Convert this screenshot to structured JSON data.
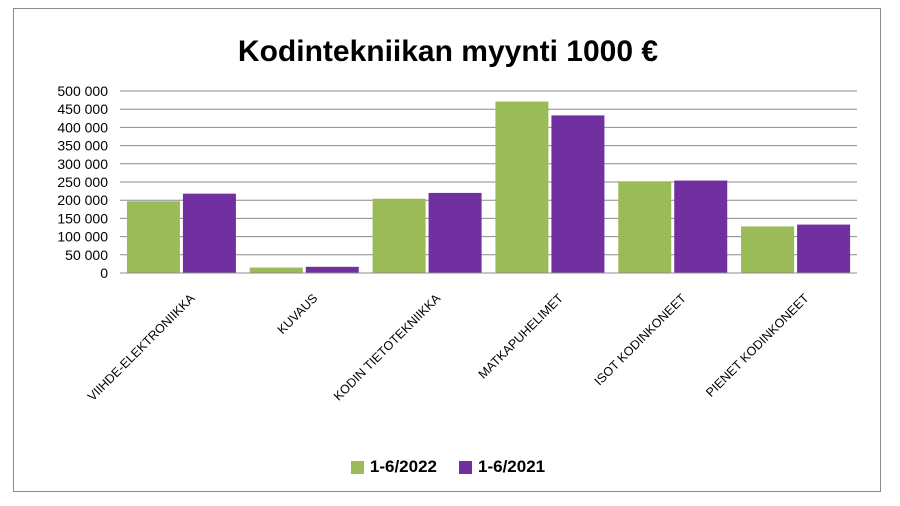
{
  "chart_data": {
    "type": "bar",
    "title": "Kodintekniikan myynti 1000 €",
    "categories": [
      "VIIHDE-ELEKTRONIIKKA",
      "KUVAUS",
      "KODIN TIETOTEKNIIKKA",
      "MATKAPUHELIMET",
      "ISOT KODINKONEET",
      "PIENET KODINKONEET"
    ],
    "series": [
      {
        "name": "1-6/2022",
        "color": "#9bbb59",
        "values": [
          197000,
          15000,
          204000,
          471000,
          252000,
          128000
        ]
      },
      {
        "name": "1-6/2021",
        "color": "#7030a0",
        "values": [
          218000,
          17000,
          220000,
          433000,
          254000,
          133000
        ]
      }
    ],
    "yticks": [
      "0",
      "50 000",
      "100 000",
      "150 000",
      "200 000",
      "250 000",
      "300 000",
      "350 000",
      "400 000",
      "450 000",
      "500 000"
    ],
    "ylim": [
      0,
      500000
    ],
    "ytick_step": 50000,
    "grid": true,
    "legend_position": "bottom"
  }
}
